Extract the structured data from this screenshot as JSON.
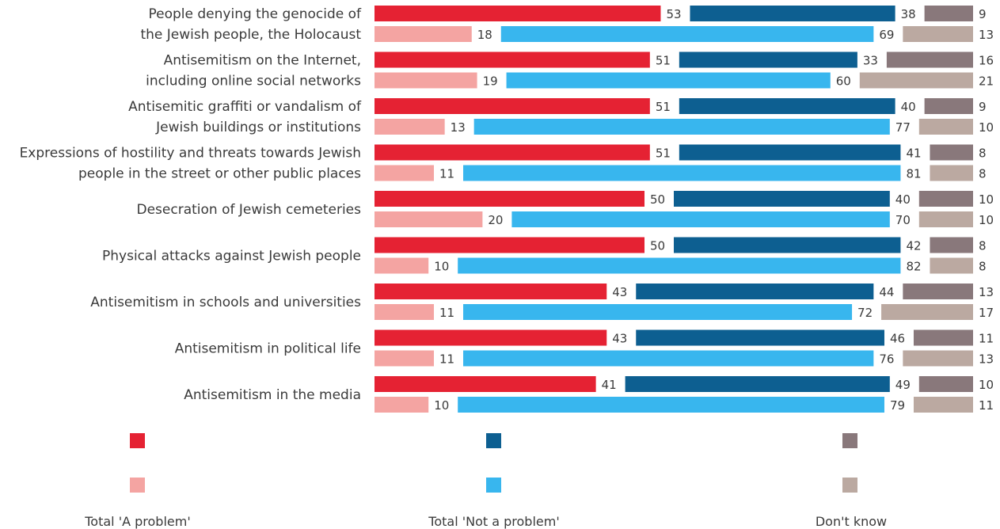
{
  "colors": {
    "problem_dark": "#e52233",
    "not_problem_dark": "#0d5f91",
    "dont_know_dark": "#89787b",
    "problem_light": "#f4a4a2",
    "not_problem_light": "#38b6ee",
    "dont_know_light": "#bba9a1"
  },
  "chart_data": {
    "type": "bar",
    "orientation": "horizontal",
    "stacked": true,
    "scale_max": 100,
    "categories": [
      [
        "People denying the genocide of",
        "the Jewish people, the Holocaust"
      ],
      [
        "Antisemitism on the Internet,",
        "including online social networks"
      ],
      [
        "Antisemitic graffiti or vandalism of",
        "Jewish buildings or institutions"
      ],
      [
        "Expressions of hostility and threats towards Jewish",
        "people in the street or other public places"
      ],
      [
        "Desecration of Jewish cemeteries"
      ],
      [
        "Physical attacks against Jewish people"
      ],
      [
        "Antisemitism in schools and universities"
      ],
      [
        "Antisemitism in political life"
      ],
      [
        "Antisemitism in the media"
      ]
    ],
    "rows": [
      "dark",
      "light"
    ],
    "series": [
      {
        "name": "Total 'A problem'",
        "dark": [
          53,
          51,
          51,
          51,
          50,
          50,
          43,
          43,
          41
        ],
        "light": [
          18,
          19,
          13,
          11,
          20,
          10,
          11,
          11,
          10
        ]
      },
      {
        "name": "Total 'Not a problem'",
        "dark": [
          38,
          33,
          40,
          41,
          40,
          42,
          44,
          46,
          49
        ],
        "light": [
          69,
          60,
          77,
          81,
          70,
          82,
          72,
          76,
          79
        ]
      },
      {
        "name": "Don't know",
        "dark": [
          9,
          16,
          9,
          8,
          10,
          8,
          13,
          11,
          10
        ],
        "light": [
          13,
          21,
          10,
          8,
          10,
          8,
          17,
          13,
          11
        ]
      }
    ],
    "legend_position": "bottom"
  }
}
